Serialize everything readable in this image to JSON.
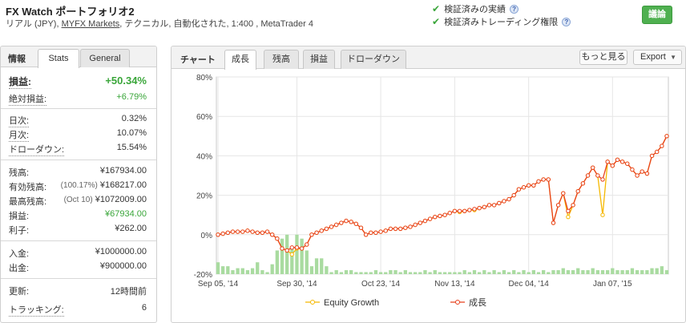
{
  "header": {
    "title": "FX Watch ポートフォリオ2",
    "sub_prefix": "リアル (JPY), ",
    "broker": "MYFX Markets",
    "sub_suffix": ", テクニカル, 自動化された, 1:400 , MetaTrader 4",
    "verified_track": "検証済みの実績",
    "verified_trading": "検証済みトレーディング権限",
    "discuss_label": "議論",
    "help_glyph": "?"
  },
  "left": {
    "info_label": "情報",
    "tab_stats": "Stats",
    "tab_general": "General",
    "profit": {
      "label": "損益:",
      "value": "+50.34%"
    },
    "abs_gain": {
      "label": "絶対損益:",
      "value": "+6.79%"
    },
    "daily": {
      "label": "日次:",
      "value": "0.32%"
    },
    "monthly": {
      "label": "月次:",
      "value": "10.07%"
    },
    "drawdown": {
      "label": "ドローダウン:",
      "value": "15.54%"
    },
    "balance": {
      "label": "残高:",
      "value": "¥167934.00"
    },
    "equity": {
      "label": "有効残高:",
      "note": "(100.17%)",
      "value": "¥168217.00"
    },
    "highest": {
      "label": "最高残高:",
      "note": "(Oct 10)",
      "value": "¥1072009.00"
    },
    "pl": {
      "label": "損益:",
      "value": "¥67934.00"
    },
    "interest": {
      "label": "利子:",
      "value": "¥262.00"
    },
    "deposits": {
      "label": "入金:",
      "value": "¥1000000.00"
    },
    "withdrawals": {
      "label": "出金:",
      "value": "¥900000.00"
    },
    "updated": {
      "label": "更新:",
      "value": "12時間前"
    },
    "tracking": {
      "label": "トラッキング:",
      "value": "6"
    }
  },
  "chart_panel": {
    "label": "チャート",
    "tabs": [
      "成長",
      "残高",
      "損益",
      "ドローダウン"
    ],
    "more_label": "もっと見る",
    "export_label": "Export",
    "caret": "▼"
  },
  "chart_data": {
    "type": "line",
    "y_ticks": [
      "80%",
      "60%",
      "40%",
      "20%",
      "0%",
      "-20%"
    ],
    "y_tick_values": [
      80,
      60,
      40,
      20,
      0,
      -20
    ],
    "ylim": [
      -20,
      80
    ],
    "x_tick_labels": [
      "Sep 05, '14",
      "Sep 30, '14",
      "Oct 23, '14",
      "Nov 13, '14",
      "Dec 04, '14",
      "Jan 07, '15"
    ],
    "x_tick_index": [
      0,
      16,
      33,
      48,
      63,
      80
    ],
    "grid": true,
    "legend_position": "bottom",
    "colors": {
      "growth": "#e8401c",
      "equity": "#f5b800",
      "bars": "#a9dba0"
    },
    "series": [
      {
        "name": "成長",
        "values": [
          0,
          0.5,
          1,
          1.5,
          1.5,
          1.5,
          2,
          1.5,
          1,
          1,
          1.5,
          0,
          -2,
          -7,
          -8,
          -6.5,
          -6.5,
          -7,
          -5,
          0,
          1,
          2,
          3,
          4,
          5,
          6,
          7,
          6.5,
          5.5,
          3.5,
          0,
          1,
          1,
          1.5,
          2,
          3,
          3,
          3,
          3.5,
          4,
          5,
          6,
          7,
          8,
          9,
          9.5,
          10,
          11,
          12,
          12,
          12,
          12.5,
          13,
          13.5,
          14,
          15,
          15,
          16,
          17,
          18,
          20,
          23,
          24,
          25,
          25,
          27,
          28,
          28,
          6,
          15,
          21,
          12,
          15,
          22,
          26,
          30,
          34,
          30,
          28,
          37,
          35,
          38,
          37,
          36,
          33,
          30,
          32,
          31,
          40,
          42,
          45,
          50
        ]
      },
      {
        "name": "Equity Growth",
        "values": [
          0,
          0.5,
          1,
          1.5,
          1.5,
          1.5,
          2,
          1.5,
          1,
          1,
          1.5,
          0,
          -2,
          -7,
          -8,
          -10,
          -7,
          -7,
          -5,
          0,
          1,
          2,
          3,
          4,
          5,
          6,
          7,
          6.5,
          5.5,
          3.5,
          0,
          1,
          1,
          1.5,
          2,
          3,
          3,
          3,
          3.5,
          4,
          5,
          6,
          7,
          8,
          9,
          9.5,
          10,
          11,
          12,
          11.5,
          12,
          12.5,
          12.5,
          13.5,
          14,
          15,
          15,
          16,
          17,
          18,
          20,
          23,
          24,
          25,
          25,
          27,
          28,
          28,
          6,
          15,
          21,
          9,
          15,
          22,
          26,
          30,
          34,
          30,
          10,
          37,
          35,
          38,
          37,
          36,
          33,
          30,
          32,
          31,
          40,
          42,
          45,
          50
        ]
      }
    ],
    "bars": [
      6,
      4,
      4,
      2,
      3,
      3,
      2,
      3,
      6,
      2,
      1,
      5,
      12,
      18,
      20,
      14,
      20,
      18,
      12,
      4,
      8,
      8,
      4,
      1,
      2,
      1,
      2,
      2,
      1,
      1,
      1,
      1,
      2,
      1,
      1,
      2,
      2,
      1,
      2,
      1,
      1,
      1,
      2,
      1,
      2,
      1,
      1,
      1,
      1,
      1,
      2,
      1,
      2,
      1,
      2,
      1,
      2,
      1,
      2,
      1,
      2,
      1,
      2,
      1,
      2,
      1,
      2,
      1,
      2,
      2,
      3,
      2,
      2,
      3,
      2,
      2,
      3,
      2,
      2,
      2,
      3,
      2,
      2,
      2,
      3,
      2,
      2,
      2,
      3,
      3,
      4,
      2
    ]
  }
}
